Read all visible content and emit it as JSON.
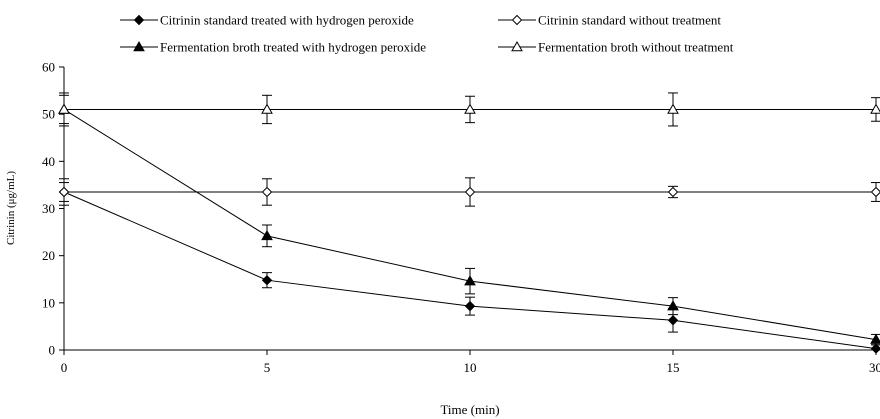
{
  "chart_data": {
    "type": "line",
    "xlabel": "Time (min)",
    "ylabel": "Citrinin (μg/mL)",
    "categories": [
      "0",
      "5",
      "10",
      "15",
      "30"
    ],
    "ylim": [
      0,
      60
    ],
    "yticks": [
      0,
      10,
      20,
      30,
      40,
      50,
      60
    ],
    "grid": false,
    "legend_position": "top",
    "series": [
      {
        "name": "Citrinin standard treated with hydrogen peroxide",
        "marker": "diamond-filled",
        "values": [
          33.5,
          14.8,
          9.3,
          6.3,
          0.3
        ],
        "errors": [
          2.8,
          1.6,
          1.9,
          2.5,
          0.8
        ]
      },
      {
        "name": "Citrinin standard without treatment",
        "marker": "diamond-open",
        "values": [
          33.5,
          33.5,
          33.5,
          33.5,
          33.5
        ],
        "errors": [
          2.0,
          2.8,
          3.0,
          1.2,
          2.0
        ]
      },
      {
        "name": "Fermentation broth treated with hydrogen peroxide",
        "marker": "triangle-filled",
        "values": [
          51.0,
          24.2,
          14.6,
          9.3,
          2.2
        ],
        "errors": [
          3.5,
          2.3,
          2.7,
          1.8,
          1.1
        ]
      },
      {
        "name": "Fermentation broth without treatment",
        "marker": "triangle-open",
        "values": [
          51.0,
          51.0,
          51.0,
          51.0,
          51.0
        ],
        "errors": [
          3.0,
          3.0,
          2.8,
          3.5,
          2.5
        ]
      }
    ]
  }
}
